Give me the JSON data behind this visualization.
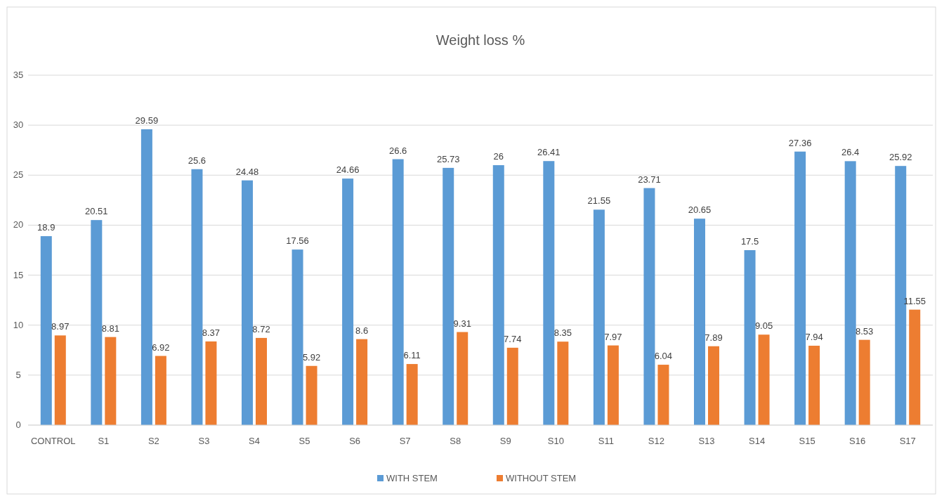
{
  "chart_data": {
    "type": "bar",
    "title": "Weight loss %",
    "categories": [
      "CONTROL",
      "S1",
      "S2",
      "S3",
      "S4",
      "S5",
      "S6",
      "S7",
      "S8",
      "S9",
      "S10",
      "S11",
      "S12",
      "S13",
      "S14",
      "S15",
      "S16",
      "S17"
    ],
    "series": [
      {
        "name": "WITH STEM",
        "color": "#5b9bd5",
        "values": [
          18.9,
          20.51,
          29.59,
          25.6,
          24.48,
          17.56,
          24.66,
          26.6,
          25.73,
          26,
          26.41,
          21.55,
          23.71,
          20.65,
          17.5,
          27.36,
          26.4,
          25.92
        ]
      },
      {
        "name": "WITHOUT STEM",
        "color": "#ed7d31",
        "values": [
          8.97,
          8.81,
          6.92,
          8.37,
          8.72,
          5.92,
          8.6,
          6.11,
          9.31,
          7.74,
          8.35,
          7.97,
          6.04,
          7.89,
          9.05,
          7.94,
          8.53,
          11.55
        ]
      }
    ],
    "ylim": [
      0,
      35
    ],
    "yticks": [
      0,
      5,
      10,
      15,
      20,
      25,
      30,
      35
    ],
    "grid": "y",
    "legend": "bottom",
    "data_labels": true
  }
}
